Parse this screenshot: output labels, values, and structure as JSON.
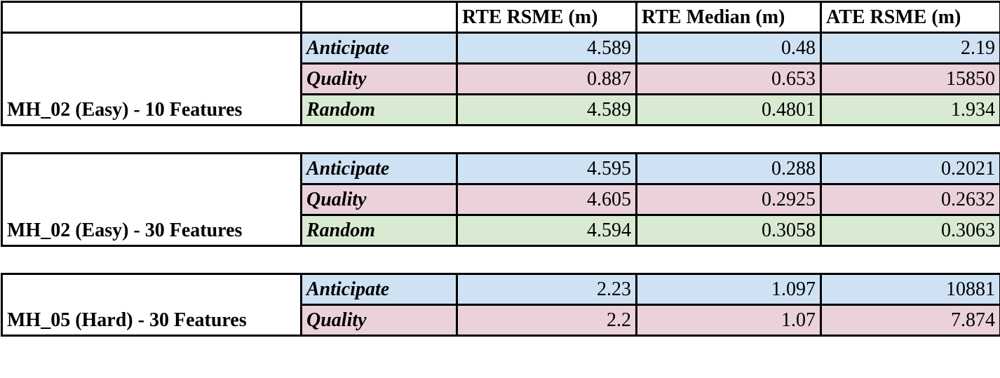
{
  "headers": [
    "",
    "",
    "RTE RSME (m)",
    "RTE Median (m)",
    "ATE RSME (m)"
  ],
  "groups": [
    {
      "label": "MH_02 (Easy) - 10 Features",
      "rows": [
        {
          "method": "Anticipate",
          "rte_rsme": "4.589",
          "rte_median": "0.48",
          "ate_rsme": "2.19"
        },
        {
          "method": "Quality",
          "rte_rsme": "0.887",
          "rte_median": "0.653",
          "ate_rsme": "15850"
        },
        {
          "method": "Random",
          "rte_rsme": "4.589",
          "rte_median": "0.4801",
          "ate_rsme": "1.934"
        }
      ]
    },
    {
      "label": "MH_02 (Easy) - 30 Features",
      "rows": [
        {
          "method": "Anticipate",
          "rte_rsme": "4.595",
          "rte_median": "0.288",
          "ate_rsme": "0.2021"
        },
        {
          "method": "Quality",
          "rte_rsme": "4.605",
          "rte_median": "0.2925",
          "ate_rsme": "0.2632"
        },
        {
          "method": "Random",
          "rte_rsme": "4.594",
          "rte_median": "0.3058",
          "ate_rsme": "0.3063"
        }
      ]
    },
    {
      "label": "MH_05 (Hard) - 30 Features",
      "rows": [
        {
          "method": "Anticipate",
          "rte_rsme": "2.23",
          "rte_median": "1.097",
          "ate_rsme": "10881"
        },
        {
          "method": "Quality",
          "rte_rsme": "2.2",
          "rte_median": "1.07",
          "ate_rsme": "7.874"
        }
      ]
    }
  ],
  "colors": {
    "anticipate": "#cfe2f3",
    "quality": "#ead1dc",
    "random": "#d9ead3"
  }
}
